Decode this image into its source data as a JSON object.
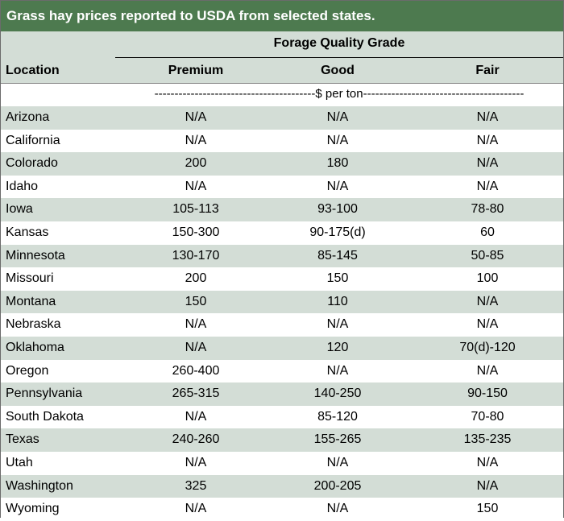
{
  "title": "Grass hay prices reported to USDA from selected states.",
  "header": {
    "group_label": "Forage Quality Grade",
    "location_label": "Location",
    "columns": [
      "Premium",
      "Good",
      "Fair"
    ]
  },
  "unit_label": "----------------------------------------$ per ton----------------------------------------",
  "rows": [
    {
      "location": "Arizona",
      "premium": "N/A",
      "good": "N/A",
      "fair": "N/A"
    },
    {
      "location": "California",
      "premium": "N/A",
      "good": "N/A",
      "fair": "N/A"
    },
    {
      "location": "Colorado",
      "premium": "200",
      "good": "180",
      "fair": "N/A"
    },
    {
      "location": "Idaho",
      "premium": "N/A",
      "good": "N/A",
      "fair": "N/A"
    },
    {
      "location": "Iowa",
      "premium": "105-113",
      "good": "93-100",
      "fair": "78-80"
    },
    {
      "location": "Kansas",
      "premium": "150-300",
      "good": "90-175(d)",
      "fair": "60"
    },
    {
      "location": "Minnesota",
      "premium": "130-170",
      "good": "85-145",
      "fair": "50-85"
    },
    {
      "location": "Missouri",
      "premium": "200",
      "good": "150",
      "fair": "100"
    },
    {
      "location": "Montana",
      "premium": "150",
      "good": "110",
      "fair": "N/A"
    },
    {
      "location": "Nebraska",
      "premium": "N/A",
      "good": "N/A",
      "fair": "N/A"
    },
    {
      "location": "Oklahoma",
      "premium": "N/A",
      "good": "120",
      "fair": "70(d)-120"
    },
    {
      "location": "Oregon",
      "premium": "260-400",
      "good": "N/A",
      "fair": "N/A"
    },
    {
      "location": "Pennsylvania",
      "premium": "265-315",
      "good": "140-250",
      "fair": "90-150"
    },
    {
      "location": "South Dakota",
      "premium": "N/A",
      "good": "85-120",
      "fair": "70-80"
    },
    {
      "location": "Texas",
      "premium": "240-260",
      "good": "155-265",
      "fair": "135-235"
    },
    {
      "location": "Utah",
      "premium": "N/A",
      "good": "N/A",
      "fair": "N/A"
    },
    {
      "location": "Washington",
      "premium": "325",
      "good": "200-205",
      "fair": "N/A"
    },
    {
      "location": "Wyoming",
      "premium": "N/A",
      "good": "N/A",
      "fair": "150"
    }
  ],
  "colors": {
    "title_bg": "#4d7a4f",
    "band_bg": "#d3ddd6"
  }
}
